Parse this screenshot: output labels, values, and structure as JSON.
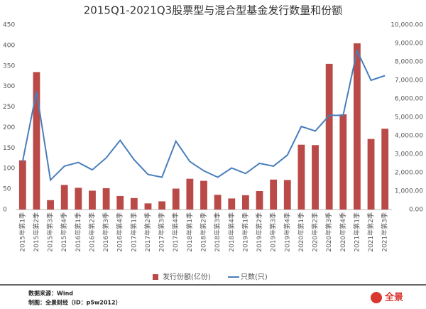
{
  "chart_data": {
    "type": "bar_line",
    "title": "2015Q1-2021Q3股票型与混合型基金发行数量和份额",
    "categories": [
      "2015年第1季",
      "2015年第2季",
      "2015年第3季",
      "2015年第4季",
      "2016年第1季",
      "2016年第2季",
      "2016年第3季",
      "2016年第4季",
      "2017年第1季",
      "2017年第2季",
      "2017年第3季",
      "2017年第4季",
      "2018年第1季",
      "2018年第2季",
      "2018年第3季",
      "2018年第4季",
      "2019年第1季",
      "2019年第2季",
      "2019年第3季",
      "2019年第4季",
      "2020年第1季",
      "2020年第2季",
      "2020年第3季",
      "2020年第4季",
      "2021年第1季",
      "2021年第2季",
      "2021年第3季"
    ],
    "series": [
      {
        "name": "发行份额(亿份)",
        "type": "bar",
        "color": "#b94a48",
        "values": [
          120,
          335,
          23,
          60,
          53,
          46,
          52,
          33,
          28,
          15,
          20,
          51,
          75,
          70,
          36,
          27,
          35,
          45,
          73,
          72,
          158,
          157,
          355,
          232,
          405,
          172,
          197
        ]
      },
      {
        "name": "只数(只)",
        "type": "line",
        "axis": "y2",
        "color": "#4a7ebb",
        "values": [
          2600,
          6400,
          1600,
          2350,
          2550,
          2150,
          2800,
          3750,
          2700,
          1900,
          1750,
          3700,
          2600,
          2100,
          1750,
          2250,
          1950,
          2500,
          2350,
          2950,
          4500,
          4250,
          5100,
          5100,
          8600,
          7000,
          7250
        ]
      }
    ],
    "ylim": [
      0,
      450
    ],
    "yticks": [
      0,
      50,
      100,
      150,
      200,
      250,
      300,
      350,
      400,
      450
    ],
    "y2lim": [
      0,
      10000
    ],
    "y2ticks": [
      {
        "value": 0,
        "label": "0.00"
      },
      {
        "value": 1000,
        "label": "1,000.00"
      },
      {
        "value": 2000,
        "label": "2,000.00"
      },
      {
        "value": 3000,
        "label": "3,000.00"
      },
      {
        "value": 4000,
        "label": "4,000.00"
      },
      {
        "value": 5000,
        "label": "5,000.00"
      },
      {
        "value": 6000,
        "label": "6,000.00"
      },
      {
        "value": 7000,
        "label": "7,000.00"
      },
      {
        "value": 8000,
        "label": "8,000.00"
      },
      {
        "value": 9000,
        "label": "9,000.00"
      },
      {
        "value": 10000,
        "label": "10,000.00"
      }
    ],
    "grid": false,
    "legend": "bottom"
  },
  "footer": {
    "source": "数据来源：Wind",
    "credit": "制图：全景财经（ID：p5w2012）",
    "logo": "全景"
  }
}
